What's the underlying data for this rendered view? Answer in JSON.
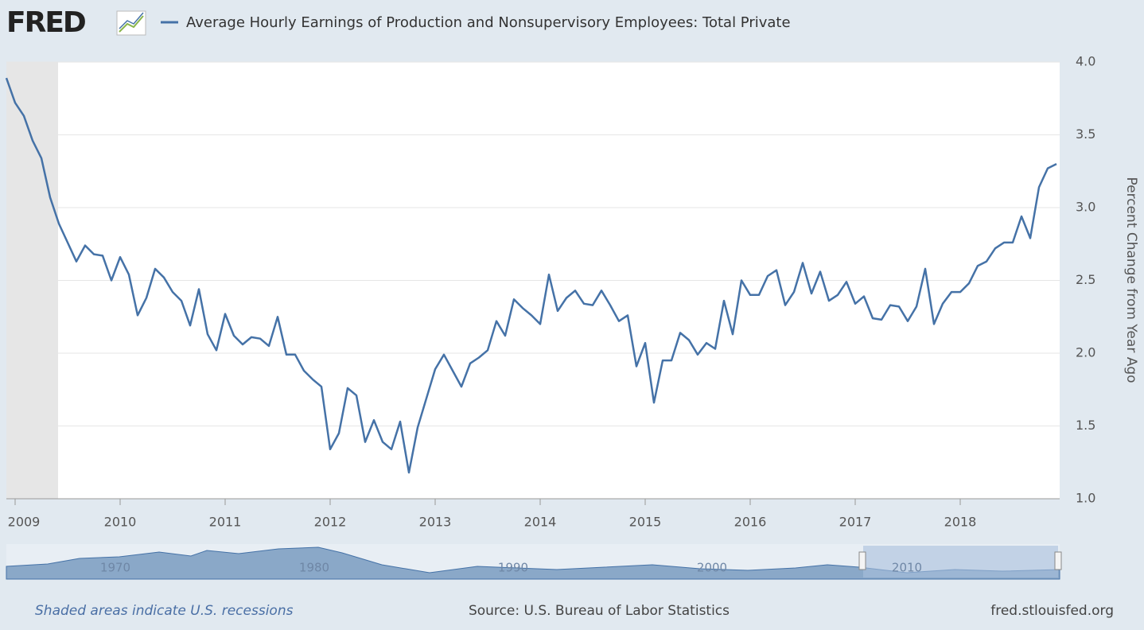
{
  "chart_data": {
    "type": "line",
    "logo": "FRED",
    "y_label": "Percent Change from Year Ago",
    "categories": [
      null,
      "2009",
      null,
      null,
      null,
      null,
      null,
      null,
      null,
      null,
      null,
      null,
      null,
      "2010",
      null,
      null,
      null,
      null,
      null,
      null,
      null,
      null,
      null,
      null,
      null,
      "2011",
      null,
      null,
      null,
      null,
      null,
      null,
      null,
      null,
      null,
      null,
      null,
      "2012",
      null,
      null,
      null,
      null,
      null,
      null,
      null,
      null,
      null,
      null,
      null,
      "2013",
      null,
      null,
      null,
      null,
      null,
      null,
      null,
      null,
      null,
      null,
      null,
      "2014",
      null,
      null,
      null,
      null,
      null,
      null,
      null,
      null,
      null,
      null,
      null,
      "2015",
      null,
      null,
      null,
      null,
      null,
      null,
      null,
      null,
      null,
      null,
      null,
      "2016",
      null,
      null,
      null,
      null,
      null,
      null,
      null,
      null,
      null,
      null,
      null,
      "2017",
      null,
      null,
      null,
      null,
      null,
      null,
      null,
      null,
      null,
      null,
      null,
      "2018",
      null,
      null,
      null,
      null,
      null,
      null,
      null,
      null,
      null,
      null,
      null
    ],
    "series": [
      {
        "name": "Average Hourly Earnings of Production and Nonsupervisory Employees: Total Private",
        "color": "#4572a7",
        "values": [
          3.89,
          3.72,
          3.63,
          3.46,
          3.34,
          3.07,
          2.89,
          2.76,
          2.63,
          2.74,
          2.68,
          2.67,
          2.5,
          2.66,
          2.54,
          2.26,
          2.38,
          2.58,
          2.52,
          2.42,
          2.36,
          2.19,
          2.44,
          2.13,
          2.02,
          2.27,
          2.12,
          2.06,
          2.11,
          2.1,
          2.05,
          2.25,
          1.99,
          1.99,
          1.88,
          1.82,
          1.77,
          1.34,
          1.45,
          1.76,
          1.71,
          1.39,
          1.54,
          1.39,
          1.34,
          1.53,
          1.18,
          1.49,
          1.69,
          1.89,
          1.99,
          1.88,
          1.77,
          1.93,
          1.97,
          2.02,
          2.22,
          2.12,
          2.37,
          2.31,
          2.26,
          2.2,
          2.54,
          2.29,
          2.38,
          2.43,
          2.34,
          2.33,
          2.43,
          2.33,
          2.22,
          2.26,
          1.91,
          2.07,
          1.66,
          1.95,
          1.95,
          2.14,
          2.09,
          1.99,
          2.07,
          2.03,
          2.36,
          2.13,
          2.5,
          2.4,
          2.4,
          2.53,
          2.57,
          2.33,
          2.42,
          2.62,
          2.41,
          2.56,
          2.36,
          2.4,
          2.49,
          2.34,
          2.39,
          2.24,
          2.23,
          2.33,
          2.32,
          2.22,
          2.32,
          2.58,
          2.2,
          2.34,
          2.42,
          2.42,
          2.48,
          2.6,
          2.63,
          2.72,
          2.76,
          2.76,
          2.94,
          2.79,
          3.14,
          3.27,
          3.3
        ]
      }
    ],
    "ylim": [
      1,
      4
    ],
    "yticks": [
      {
        "value": 1,
        "label": "1.0"
      },
      1.5,
      {
        "value": 2,
        "label": "2.0"
      },
      2.5,
      {
        "value": 3,
        "label": "3.0"
      },
      3.5,
      {
        "value": 4,
        "label": "4.0"
      }
    ],
    "grid": true,
    "navigator_labels": [
      "1970",
      "1980",
      "1990",
      "2000",
      "2010"
    ],
    "footer": {
      "note": "Shaded areas indicate U.S. recessions",
      "source": "Source: U.S. Bureau of Labor Statistics",
      "site": "fred.stlouisfed.org"
    }
  }
}
